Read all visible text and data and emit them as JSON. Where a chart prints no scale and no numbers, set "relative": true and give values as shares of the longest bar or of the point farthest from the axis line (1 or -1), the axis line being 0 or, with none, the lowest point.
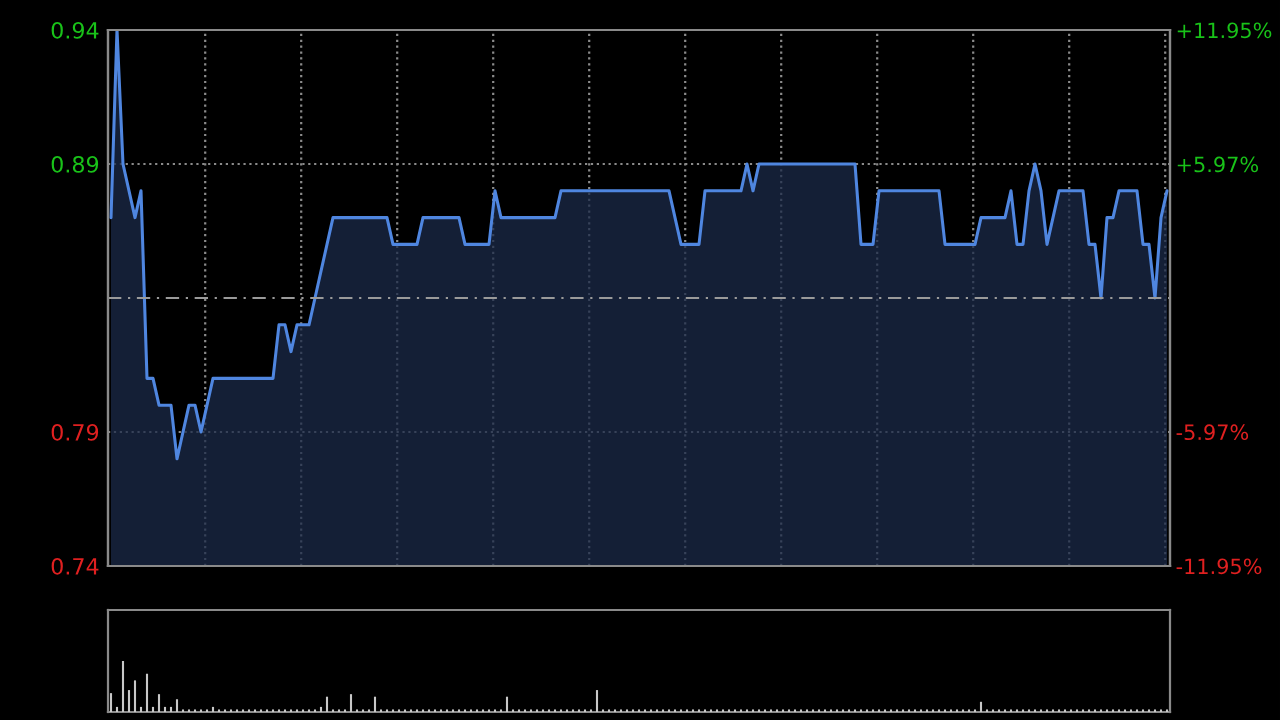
{
  "chart_data": [
    {
      "type": "area",
      "categories": [
        null,
        null,
        null,
        null,
        null,
        null,
        null,
        null,
        null,
        null,
        null,
        null,
        null,
        null,
        null,
        null,
        null,
        null,
        null,
        null,
        null,
        null,
        null,
        null,
        null,
        null,
        null,
        null,
        null,
        null,
        null,
        null,
        null,
        null,
        null,
        null,
        null,
        null,
        null,
        null,
        null,
        null,
        null,
        null,
        null,
        null,
        null,
        null,
        null,
        null,
        null,
        null,
        null,
        null,
        null,
        null,
        null,
        null,
        null,
        null,
        null,
        null,
        null,
        null,
        null,
        null,
        null,
        null,
        null,
        null,
        null,
        null,
        null,
        null,
        null,
        null,
        null,
        null,
        null,
        null,
        null,
        null,
        null,
        null,
        null,
        null,
        null,
        null,
        null,
        null,
        null,
        null,
        null,
        null,
        null,
        null,
        null,
        null,
        null,
        null,
        null,
        null,
        null,
        null,
        null,
        null,
        null,
        null,
        null,
        null,
        null,
        null,
        null,
        null,
        null,
        null,
        null,
        null,
        null,
        null,
        null,
        null,
        null,
        null,
        null,
        null,
        null,
        null,
        null,
        null,
        null,
        null,
        null,
        null,
        null,
        null,
        null,
        null,
        null,
        null,
        null,
        null,
        null,
        null,
        null,
        null,
        null,
        null,
        null,
        null,
        null,
        null,
        null,
        null,
        null,
        null,
        null,
        null,
        null,
        null,
        null,
        null,
        null,
        null,
        null,
        null,
        null,
        null,
        null,
        null,
        null,
        null,
        null,
        null,
        null,
        null,
        null
      ],
      "series": [
        {
          "color": "#4f86e0",
          "values": [
            0.87,
            0.94,
            0.89,
            0.88,
            0.87,
            0.88,
            0.81,
            0.81,
            0.8,
            0.8,
            0.8,
            0.78,
            0.79,
            0.8,
            0.8,
            0.79,
            0.8,
            0.81,
            0.81,
            0.81,
            0.81,
            0.81,
            0.81,
            0.81,
            0.81,
            0.81,
            0.81,
            0.81,
            0.83,
            0.83,
            0.82,
            0.83,
            0.83,
            0.83,
            0.84,
            0.85,
            0.86,
            0.87,
            0.87,
            0.87,
            0.87,
            0.87,
            0.87,
            0.87,
            0.87,
            0.87,
            0.87,
            0.86,
            0.86,
            0.86,
            0.86,
            0.86,
            0.87,
            0.87,
            0.87,
            0.87,
            0.87,
            0.87,
            0.87,
            0.86,
            0.86,
            0.86,
            0.86,
            0.86,
            0.88,
            0.87,
            0.87,
            0.87,
            0.87,
            0.87,
            0.87,
            0.87,
            0.87,
            0.87,
            0.87,
            0.88,
            0.88,
            0.88,
            0.88,
            0.88,
            0.88,
            0.88,
            0.88,
            0.88,
            0.88,
            0.88,
            0.88,
            0.88,
            0.88,
            0.88,
            0.88,
            0.88,
            0.88,
            0.88,
            0.87,
            0.86,
            0.86,
            0.86,
            0.86,
            0.88,
            0.88,
            0.88,
            0.88,
            0.88,
            0.88,
            0.88,
            0.89,
            0.88,
            0.89,
            0.89,
            0.89,
            0.89,
            0.89,
            0.89,
            0.89,
            0.89,
            0.89,
            0.89,
            0.89,
            0.89,
            0.89,
            0.89,
            0.89,
            0.89,
            0.89,
            0.86,
            0.86,
            0.86,
            0.88,
            0.88,
            0.88,
            0.88,
            0.88,
            0.88,
            0.88,
            0.88,
            0.88,
            0.88,
            0.88,
            0.86,
            0.86,
            0.86,
            0.86,
            0.86,
            0.86,
            0.87,
            0.87,
            0.87,
            0.87,
            0.87,
            0.88,
            0.86,
            0.86,
            0.88,
            0.89,
            0.88,
            0.86,
            0.87,
            0.88,
            0.88,
            0.88,
            0.88,
            0.88,
            0.86,
            0.86,
            0.84,
            0.87,
            0.87,
            0.88,
            0.88,
            0.88,
            0.88,
            0.86,
            0.86,
            0.84,
            0.87,
            0.88
          ]
        }
      ],
      "ylim": [
        0.74,
        0.94
      ],
      "yticks": [
        0.74,
        0.79,
        0.89,
        0.94
      ],
      "y2lim": [
        -11.95,
        11.95
      ],
      "y2ticks": [
        {
          "value": -11.95,
          "label": "-11.95%"
        },
        {
          "value": -5.97,
          "label": "-5.97%"
        },
        {
          "value": 5.97,
          "label": "+5.97%"
        },
        {
          "value": 11.95,
          "label": "+11.95%"
        }
      ],
      "ref_lines": [
        {
          "axis": "y",
          "value": 0.84,
          "line_style": "dashed",
          "color": "#9a9a9a"
        }
      ],
      "grid": true,
      "tick_labels": "y"
    },
    {
      "type": "bar",
      "relative": true,
      "tick_labels": false,
      "categories": [
        null,
        null,
        null,
        null,
        null,
        null,
        null,
        null,
        null,
        null,
        null,
        null,
        null,
        null,
        null,
        null,
        null,
        null,
        null,
        null,
        null,
        null,
        null,
        null,
        null,
        null,
        null,
        null,
        null,
        null,
        null,
        null,
        null,
        null,
        null,
        null,
        null,
        null,
        null,
        null,
        null,
        null,
        null,
        null,
        null,
        null,
        null,
        null,
        null,
        null,
        null,
        null,
        null,
        null,
        null,
        null,
        null,
        null,
        null,
        null,
        null,
        null,
        null,
        null,
        null,
        null,
        null,
        null,
        null,
        null,
        null,
        null,
        null,
        null,
        null,
        null,
        null,
        null,
        null,
        null,
        null,
        null,
        null,
        null,
        null,
        null,
        null,
        null,
        null,
        null,
        null,
        null,
        null,
        null,
        null,
        null,
        null,
        null,
        null,
        null,
        null,
        null,
        null,
        null,
        null,
        null,
        null,
        null,
        null,
        null,
        null,
        null,
        null,
        null,
        null,
        null,
        null,
        null,
        null,
        null,
        null,
        null,
        null,
        null,
        null,
        null,
        null,
        null,
        null,
        null,
        null,
        null,
        null,
        null,
        null,
        null,
        null,
        null,
        null,
        null,
        null,
        null,
        null,
        null,
        null,
        null,
        null,
        null,
        null,
        null,
        null,
        null,
        null,
        null,
        null,
        null,
        null,
        null,
        null,
        null,
        null,
        null,
        null,
        null,
        null,
        null,
        null,
        null,
        null,
        null,
        null,
        null,
        null,
        null,
        null,
        null,
        null
      ],
      "series": [
        {
          "color": "#c8c8c8",
          "values": [
            0.37,
            0.1,
            1,
            0.43,
            0.62,
            0.1,
            0.75,
            0.1,
            0.35,
            0.1,
            0.1,
            0.25,
            0.05,
            0.05,
            0.05,
            0.05,
            0.05,
            0.1,
            0.05,
            0.05,
            0.05,
            0.05,
            0.05,
            0.05,
            0.05,
            0.05,
            0.05,
            0.05,
            0.05,
            0.05,
            0.05,
            0.05,
            0.05,
            0.05,
            0.05,
            0.1,
            0.3,
            0.05,
            0.05,
            0.05,
            0.35,
            0.05,
            0.05,
            0.05,
            0.3,
            0.05,
            0.05,
            0.05,
            0.05,
            0.05,
            0.05,
            0.05,
            0.05,
            0.05,
            0.05,
            0.05,
            0.05,
            0.05,
            0.05,
            0.05,
            0.05,
            0.05,
            0.05,
            0.05,
            0.05,
            0.05,
            0.3,
            0.05,
            0.05,
            0.05,
            0.05,
            0.05,
            0.05,
            0.05,
            0.05,
            0.05,
            0.05,
            0.05,
            0.05,
            0.05,
            0.05,
            0.43,
            0.05,
            0.05,
            0.05,
            0.05,
            0.05,
            0.05,
            0.05,
            0.05,
            0.05,
            0.05,
            0.05,
            0.05,
            0.05,
            0.05,
            0.05,
            0.05,
            0.05,
            0.05,
            0.05,
            0.05,
            0.05,
            0.05,
            0.05,
            0.05,
            0.05,
            0.05,
            0.05,
            0.05,
            0.05,
            0.05,
            0.05,
            0.05,
            0.05,
            0.05,
            0.05,
            0.05,
            0.05,
            0.05,
            0.05,
            0.05,
            0.05,
            0.05,
            0.05,
            0.05,
            0.05,
            0.05,
            0.05,
            0.05,
            0.05,
            0.05,
            0.05,
            0.05,
            0.05,
            0.05,
            0.05,
            0.05,
            0.05,
            0.05,
            0.05,
            0.05,
            0.05,
            0.05,
            0.05,
            0.2,
            0.05,
            0.05,
            0.05,
            0.05,
            0.05,
            0.05,
            0.05,
            0.05,
            0.05,
            0.05,
            0.05,
            0.05,
            0.05,
            0.05,
            0.05,
            0.05,
            0.05,
            0.05,
            0.05,
            0.05,
            0.05,
            0.05,
            0.05,
            0.05,
            0.05,
            0.05,
            0.05,
            0.05,
            0.05,
            0.05,
            0.05
          ]
        }
      ]
    }
  ]
}
